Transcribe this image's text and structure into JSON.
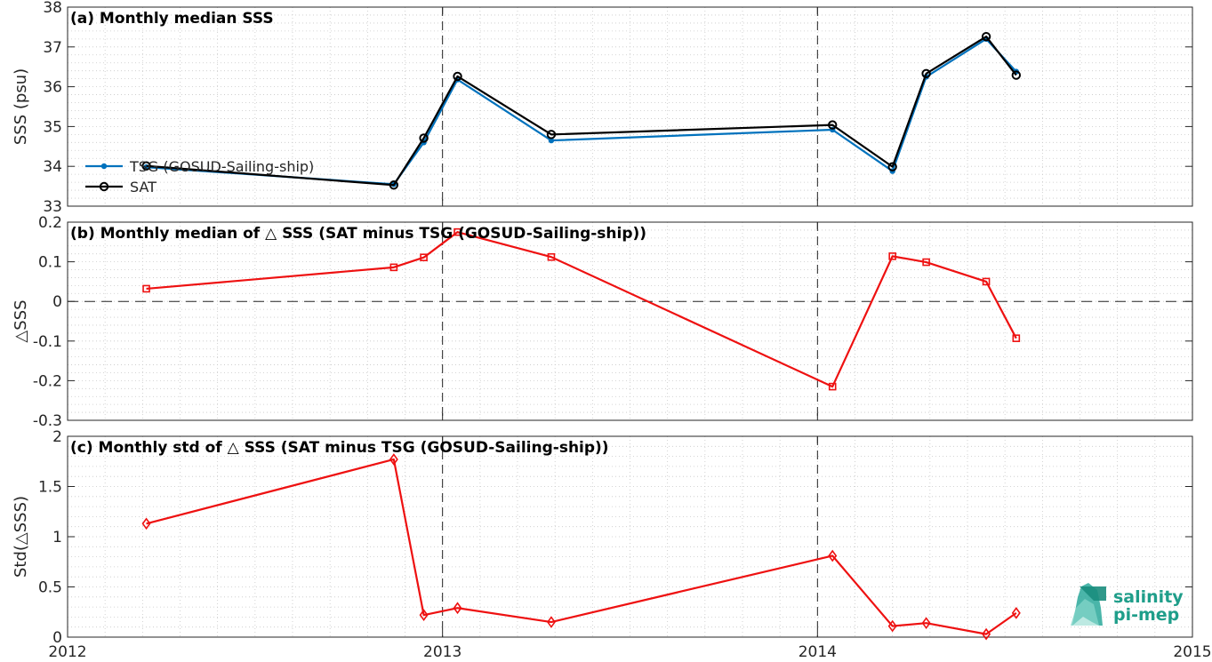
{
  "chart_data": [
    {
      "type": "line",
      "title": "(a) Monthly median SSS",
      "ylabel": "SSS (psu)",
      "xlim": [
        2012,
        2015
      ],
      "ylim": [
        33,
        38
      ],
      "yticks": [
        33,
        34,
        35,
        36,
        37,
        38
      ],
      "grid": true,
      "legend_position": "left",
      "series": [
        {
          "name": "TSG (GOSUD-Sailing-ship)",
          "color": "#0072BD",
          "marker": "dot",
          "x": [
            2012.21,
            2012.87,
            2012.95,
            2013.04,
            2013.29,
            2014.04,
            2014.2,
            2014.29,
            2014.45,
            2014.53
          ],
          "y": [
            33.98,
            33.55,
            34.6,
            36.18,
            34.65,
            34.92,
            33.88,
            36.25,
            37.2,
            36.38
          ]
        },
        {
          "name": "SAT",
          "color": "#000000",
          "marker": "circle",
          "x": [
            2012.21,
            2012.87,
            2012.95,
            2013.04,
            2013.29,
            2014.04,
            2014.2,
            2014.29,
            2014.45,
            2014.53
          ],
          "y": [
            34.01,
            33.53,
            34.71,
            36.26,
            34.8,
            35.04,
            33.99,
            36.33,
            37.26,
            36.29
          ]
        }
      ],
      "vlines": [
        2013,
        2014
      ]
    },
    {
      "type": "line",
      "title": "(b) Monthly median of △ SSS (SAT minus TSG (GOSUD-Sailing-ship))",
      "ylabel": "△SSS",
      "xlim": [
        2012,
        2015
      ],
      "ylim": [
        -0.3,
        0.2
      ],
      "yticks": [
        -0.3,
        -0.2,
        -0.1,
        0,
        0.1,
        0.2
      ],
      "yticklabels": [
        "-0.3",
        "-0.2",
        "-0.1",
        "0",
        "0.1",
        "0.2"
      ],
      "grid": true,
      "hline": 0,
      "vlines": [
        2013,
        2014
      ],
      "series": [
        {
          "color": "#ee1111",
          "marker": "square",
          "x": [
            2012.21,
            2012.87,
            2012.95,
            2013.04,
            2013.29,
            2014.04,
            2014.2,
            2014.29,
            2014.45,
            2014.53
          ],
          "y": [
            0.032,
            0.086,
            0.111,
            0.175,
            0.112,
            -0.215,
            0.114,
            0.099,
            0.05,
            -0.093
          ]
        }
      ]
    },
    {
      "type": "line",
      "title": "(c) Monthly std of △ SSS (SAT minus TSG (GOSUD-Sailing-ship))",
      "ylabel": "Std(△SSS)",
      "xlabel": "",
      "xlim": [
        2012,
        2015
      ],
      "xticks": [
        2012,
        2013,
        2014,
        2015
      ],
      "ylim": [
        0,
        2
      ],
      "yticks": [
        0,
        0.5,
        1,
        1.5,
        2
      ],
      "yticklabels": [
        "0",
        "0.5",
        "1",
        "1.5",
        "2"
      ],
      "grid": true,
      "vlines": [
        2013,
        2014
      ],
      "series": [
        {
          "color": "#ee1111",
          "marker": "diamond",
          "x": [
            2012.21,
            2012.87,
            2012.95,
            2013.04,
            2013.29,
            2014.04,
            2014.2,
            2014.29,
            2014.45,
            2014.53
          ],
          "y": [
            1.13,
            1.77,
            0.22,
            0.29,
            0.15,
            0.81,
            0.11,
            0.14,
            0.03,
            0.24
          ]
        }
      ]
    }
  ],
  "logo": {
    "line1": "salinity",
    "line2": "pi-mep",
    "color": "#1f9e8a"
  }
}
